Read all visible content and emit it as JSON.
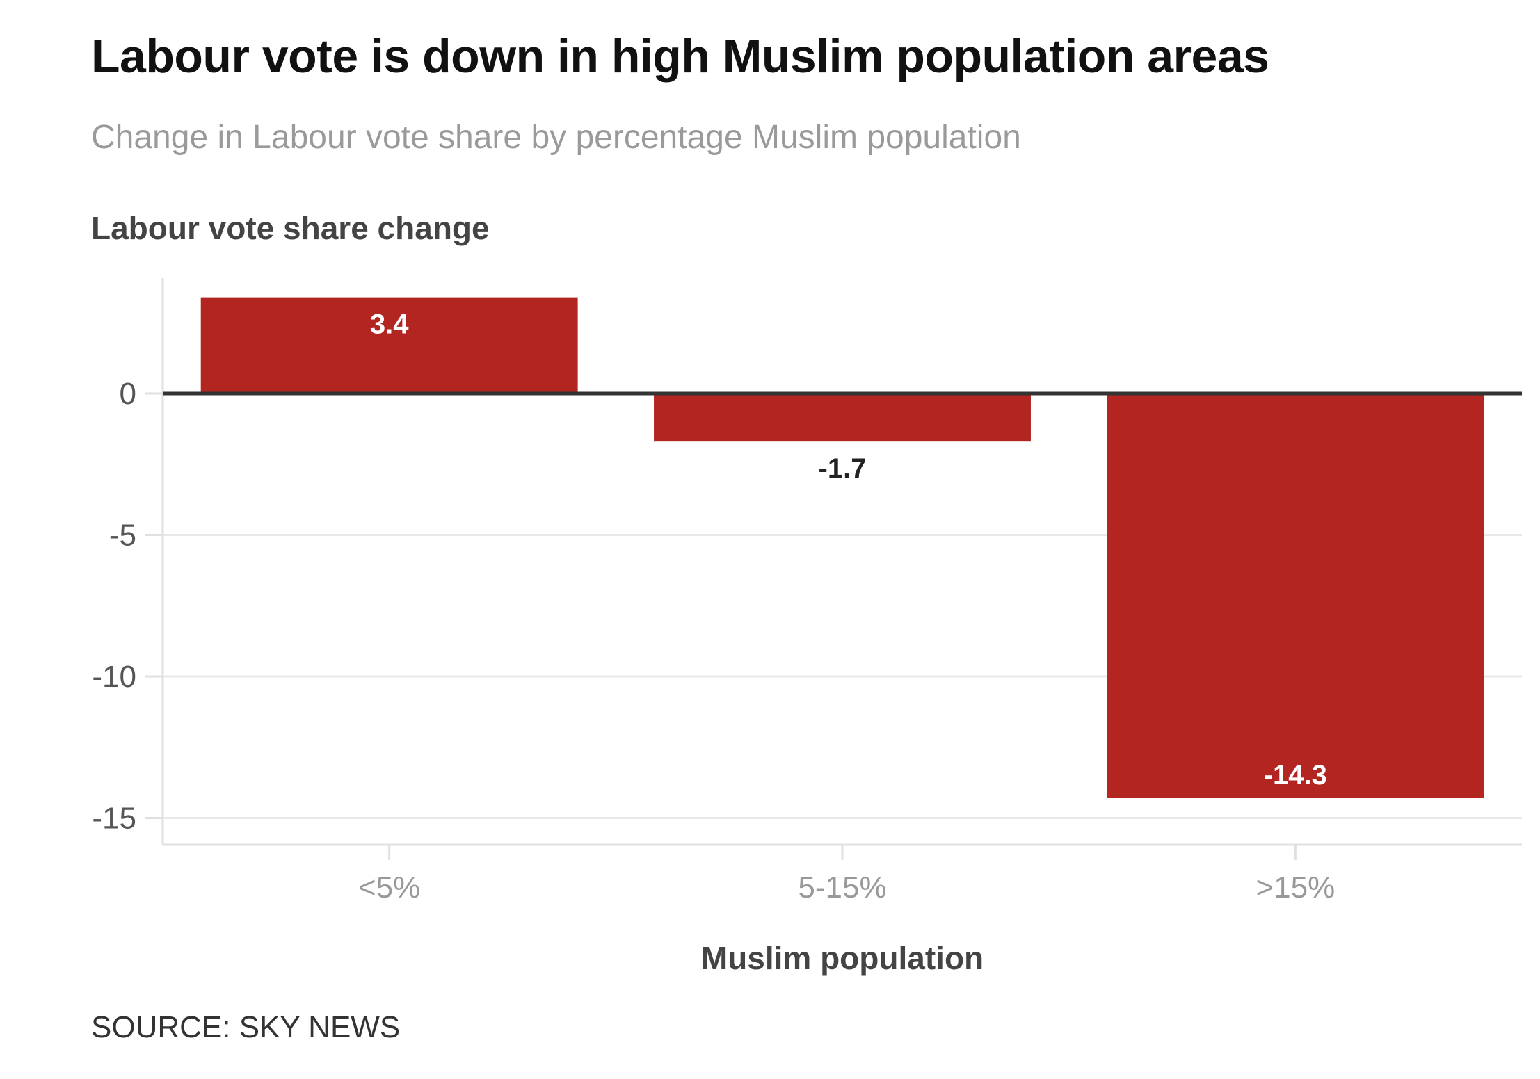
{
  "title": "Labour vote is down in high Muslim population areas",
  "subtitle": "Change in Labour vote share by percentage Muslim population",
  "source": "SOURCE: SKY NEWS",
  "colors": {
    "bar": "#b22520",
    "grid": "#e8e8e8",
    "zero_line": "#333333",
    "axis": "#e0e0e0"
  },
  "chart_data": {
    "type": "bar",
    "ylabel": "Labour vote share change",
    "xlabel": "Muslim population",
    "categories": [
      "<5%",
      "5-15%",
      ">15%"
    ],
    "values": [
      3.4,
      -1.7,
      -14.3
    ],
    "data_labels": [
      "3.4",
      "-1.7",
      "-14.3"
    ],
    "yticks": [
      0,
      -5,
      -10,
      -15
    ],
    "ytick_labels": [
      "0",
      "-5",
      "-10",
      "-15"
    ],
    "ylim": [
      -16,
      4
    ],
    "grid": true,
    "legend": "none"
  }
}
